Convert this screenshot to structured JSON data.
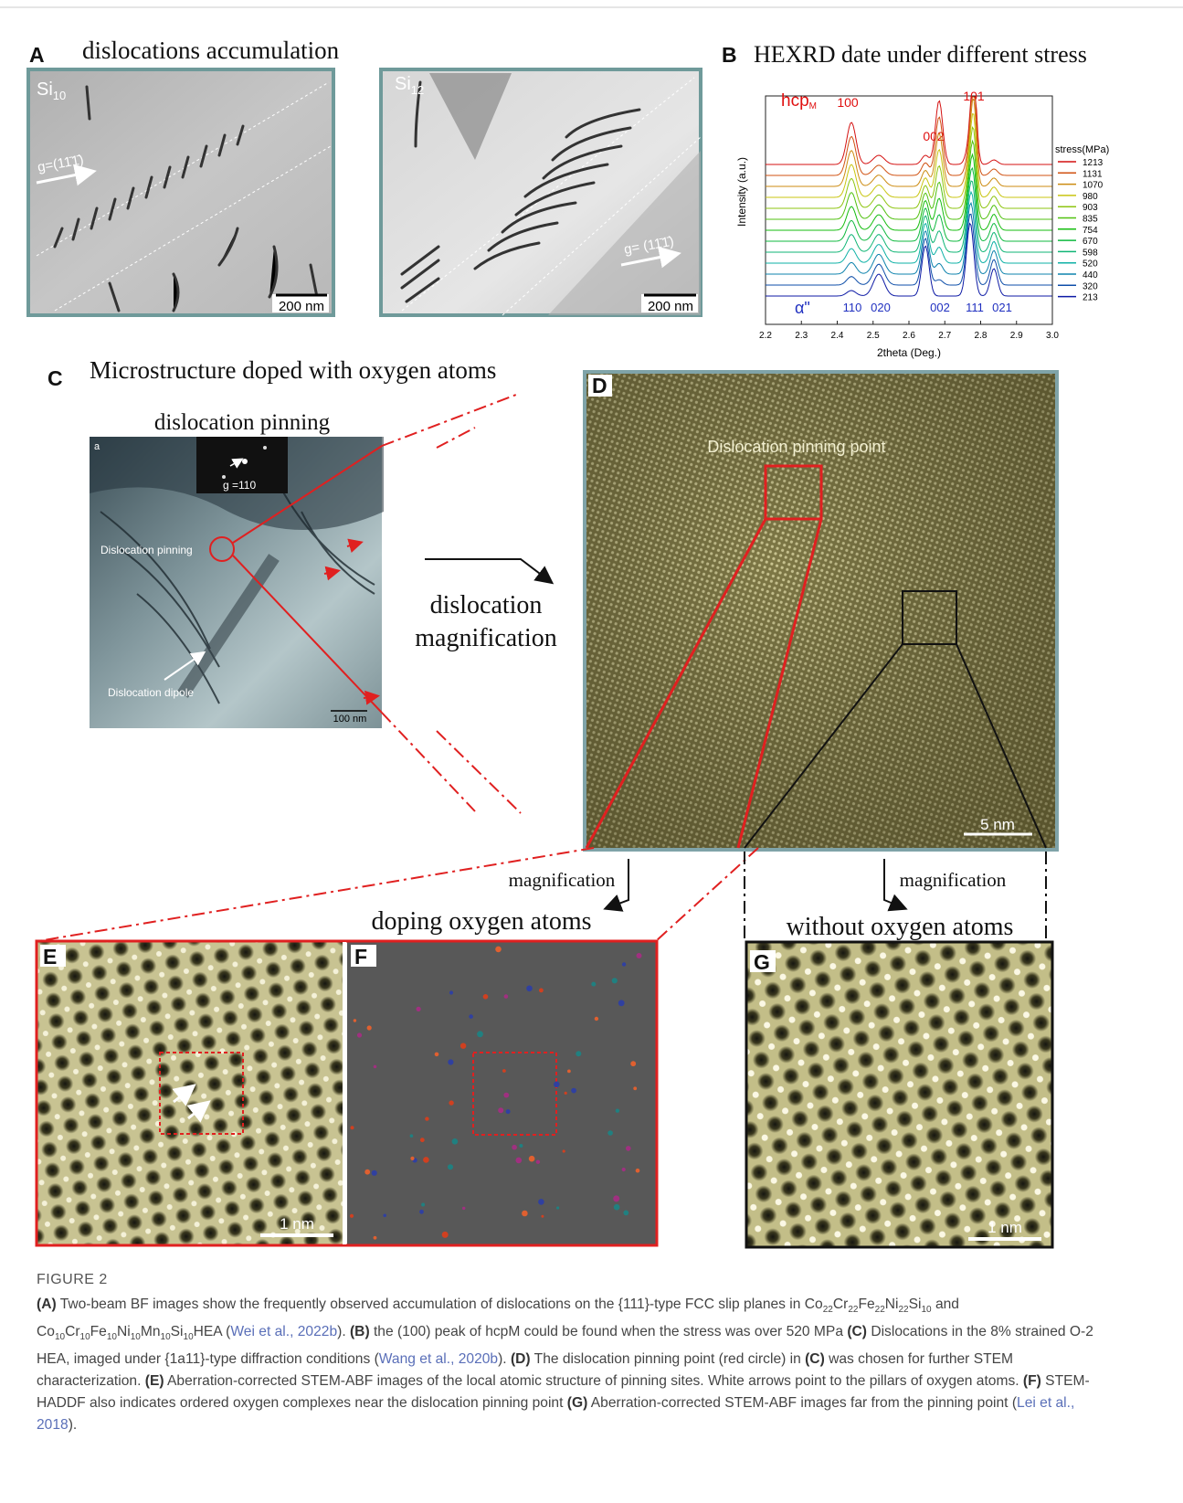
{
  "panel_a": {
    "label": "A",
    "title": "dislocations accumulation",
    "image1": {
      "tag": "Si",
      "tag_sub": "10",
      "g_label": "g=(11̄1̄)",
      "scale": "200 nm"
    },
    "image2": {
      "tag": "Si",
      "tag_sub": "12",
      "g_label": "g= (11̄1̄)",
      "scale": "200 nm"
    }
  },
  "panel_b": {
    "label": "B",
    "title": "HEXRD date under different stress",
    "y_label": "Intensity (a.u.)",
    "x_label": "2theta (Deg.)",
    "x_ticks": [
      "2.2",
      "2.3",
      "2.4",
      "2.5",
      "2.6",
      "2.7",
      "2.8",
      "2.9",
      "3.0"
    ],
    "legend_title": "stress(MPa)",
    "legend": [
      "1213",
      "1131",
      "1070",
      "980",
      "903",
      "835",
      "754",
      "670",
      "598",
      "520",
      "440",
      "320",
      "213"
    ],
    "hcp": {
      "name": "hcp",
      "sub": "M",
      "peaks": [
        "100",
        "002",
        "101"
      ]
    },
    "alpha": {
      "name": "α\"",
      "peaks": [
        "110",
        "020",
        "002",
        "111",
        "021"
      ]
    }
  },
  "panel_c": {
    "label": "C",
    "title": "Microstructure doped with oxygen atoms",
    "subtitle": "dislocation pinning",
    "image": {
      "tag": "a",
      "g_label": "g =110",
      "pinning": "Dislocation pinning",
      "dipole": "Dislocation dipole",
      "scale": "100 nm"
    },
    "arrow_text": [
      "dislocation",
      "magnification"
    ]
  },
  "panel_d": {
    "label": "D",
    "annotation": "Dislocation pinning point",
    "scale": "5 nm"
  },
  "bottom": {
    "left_arrow": "magnification",
    "left_title": "doping oxygen atoms",
    "right_arrow": "magnification",
    "right_title": "without oxygen atoms"
  },
  "panel_e": {
    "label": "E",
    "scale": "1 nm"
  },
  "panel_f": {
    "label": "F"
  },
  "panel_g": {
    "label": "G",
    "scale": "1 nm"
  },
  "caption": {
    "label": "FIGURE 2",
    "parts": [
      "(A)",
      " Two-beam BF images show the frequently observed accumulation of dislocations on the {111}-type FCC slip planes in ",
      "Co",
      "22",
      "Cr",
      "22",
      "Fe",
      "22",
      "Ni",
      "22",
      "Si",
      "10",
      " and ",
      "Co",
      "10",
      "Cr",
      "10",
      "Fe",
      "10",
      "Ni",
      "10",
      "Mn",
      "10",
      "Si",
      "10",
      "HEA (",
      "Wei et al., 2022b",
      "). ",
      "(B)",
      " the (100) peak of hcpM could be found when the stress was over 520 MPa ",
      "(C)",
      " Dislocations in the 8% strained O-2 HEA, imaged under {1a11}-type diffraction conditions (",
      "Wang et al., 2020b",
      "). ",
      "(D)",
      " The dislocation pinning point (red circle) in ",
      "(C)",
      " was chosen for further STEM characterization. ",
      "(E)",
      " Aberration-corrected STEM-ABF images of the local atomic structure of pinning sites. White arrows point to the pillars of oxygen atoms. ",
      "(F)",
      " STEM-HADDF also indicates ordered oxygen complexes near the dislocation pinning point ",
      "(G)",
      " Aberration-corrected STEM-ABF images far from the pinning point (",
      "Lei et al., 2018",
      ")."
    ]
  }
}
